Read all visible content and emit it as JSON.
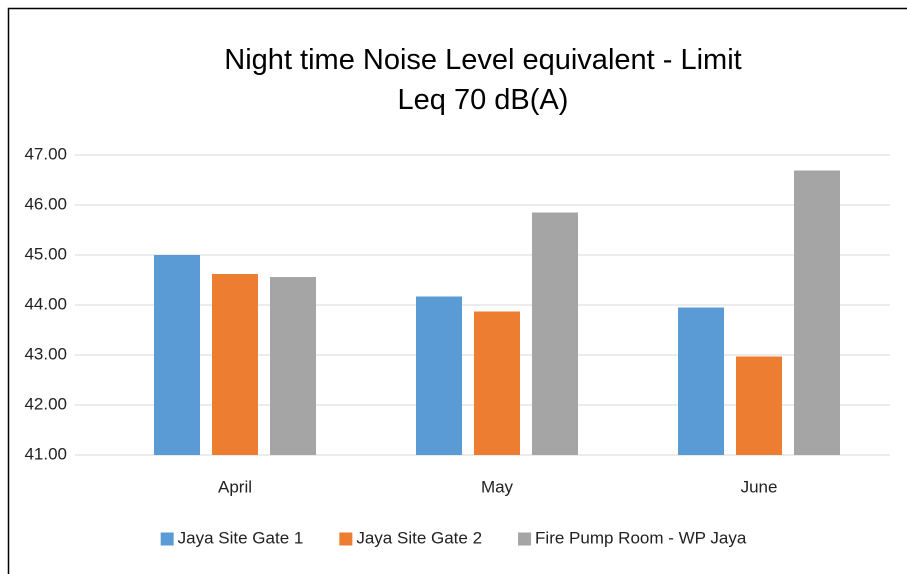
{
  "chart_data": {
    "type": "bar",
    "title": "Night time Noise Level equivalent - Limit Leq 70 dB(A)",
    "categories": [
      "April",
      "May",
      "June"
    ],
    "series": [
      {
        "name": "Jaya Site Gate 1",
        "color": "#5b9bd5",
        "values": [
          45.0,
          44.17,
          43.95
        ]
      },
      {
        "name": "Jaya Site Gate 2",
        "color": "#ed7d31",
        "values": [
          44.62,
          43.87,
          42.97
        ]
      },
      {
        "name": "Fire Pump Room - WP Jaya",
        "color": "#a5a5a5",
        "values": [
          44.56,
          45.85,
          46.69
        ]
      }
    ],
    "ylim": [
      41,
      47
    ],
    "yticks": [
      {
        "value": 41,
        "label": "41.00"
      },
      {
        "value": 42,
        "label": "42.00"
      },
      {
        "value": 43,
        "label": "43.00"
      },
      {
        "value": 44,
        "label": "44.00"
      },
      {
        "value": 45,
        "label": "45.00"
      },
      {
        "value": 46,
        "label": "46.00"
      },
      {
        "value": 47,
        "label": "47.00"
      }
    ],
    "grid": true,
    "legend": "bottom"
  }
}
